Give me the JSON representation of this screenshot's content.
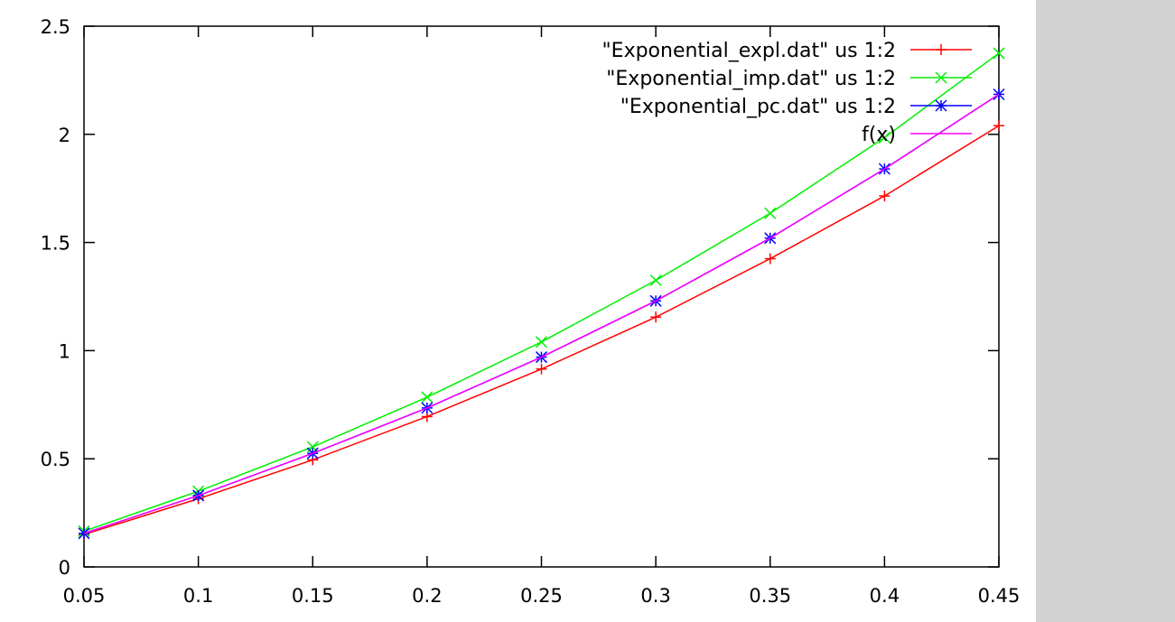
{
  "chart_data": {
    "type": "line",
    "title": "",
    "xlabel": "",
    "ylabel": "",
    "xlim": [
      0.05,
      0.45
    ],
    "ylim": [
      0,
      2.5
    ],
    "x_ticks": [
      "0.05",
      "0.1",
      "0.15",
      "0.2",
      "0.25",
      "0.3",
      "0.35",
      "0.4",
      "0.45"
    ],
    "y_ticks": [
      "0",
      "0.5",
      "1",
      "1.5",
      "2",
      "2.5"
    ],
    "grid": false,
    "legend_position": "top-right",
    "series": [
      {
        "name": "\"Exponential_expl.dat\" us 1:2",
        "color": "#ff0000",
        "marker": "plus",
        "x": [
          0.05,
          0.1,
          0.15,
          0.2,
          0.25,
          0.3,
          0.35,
          0.4,
          0.45
        ],
        "y": [
          0.15,
          0.315,
          0.495,
          0.695,
          0.915,
          1.155,
          1.425,
          1.715,
          2.04
        ]
      },
      {
        "name": "\"Exponential_imp.dat\" us 1:2",
        "color": "#00ee00",
        "marker": "cross",
        "x": [
          0.05,
          0.1,
          0.15,
          0.2,
          0.25,
          0.3,
          0.35,
          0.4,
          0.45
        ],
        "y": [
          0.165,
          0.35,
          0.555,
          0.785,
          1.04,
          1.325,
          1.635,
          1.985,
          2.375
        ]
      },
      {
        "name": "\"Exponential_pc.dat\" us 1:2",
        "color": "#0000ff",
        "marker": "star",
        "x": [
          0.05,
          0.1,
          0.15,
          0.2,
          0.25,
          0.3,
          0.35,
          0.4,
          0.45
        ],
        "y": [
          0.155,
          0.33,
          0.525,
          0.735,
          0.97,
          1.23,
          1.52,
          1.84,
          2.185
        ]
      },
      {
        "name": "f(x)",
        "color": "#ff00ff",
        "marker": "none",
        "x": [
          0.05,
          0.1,
          0.15,
          0.2,
          0.25,
          0.3,
          0.35,
          0.4,
          0.45
        ],
        "y": [
          0.155,
          0.33,
          0.525,
          0.735,
          0.97,
          1.23,
          1.52,
          1.84,
          2.185
        ]
      }
    ]
  }
}
